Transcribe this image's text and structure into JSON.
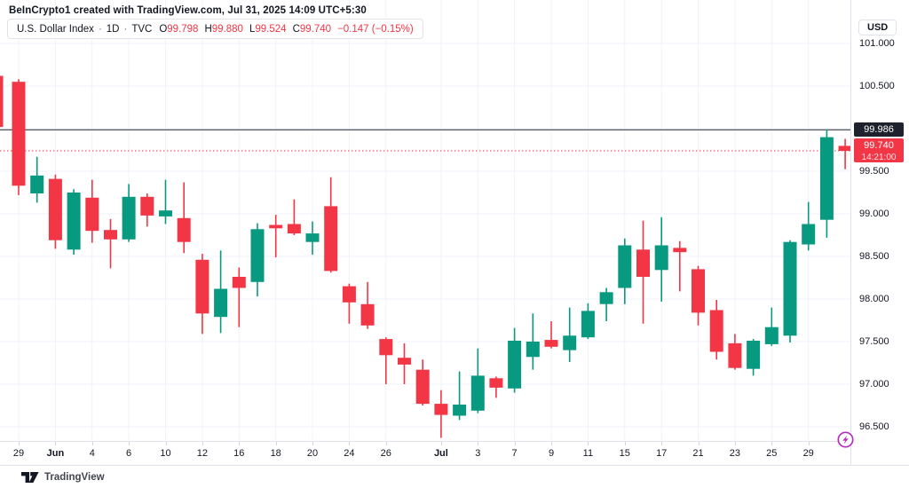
{
  "header": {
    "title": "BeInCrypto1 created with TradingView.com, Jul 31, 2025 14:09 UTC+5:30"
  },
  "legend": {
    "symbol": "U.S. Dollar Index",
    "sep": "·",
    "timeframe": "1D",
    "exchange": "TVC",
    "ohlc": [
      {
        "label": "O",
        "value": "99.798"
      },
      {
        "label": "H",
        "value": "99.880"
      },
      {
        "label": "L",
        "value": "99.524"
      },
      {
        "label": "C",
        "value": "99.740"
      }
    ],
    "change": "−0.147 (−0.15%)"
  },
  "price_labels": {
    "line_label": "99.986",
    "last_label": "99.740",
    "last_time": "14:21:00"
  },
  "axes": {
    "currency_button": "USD"
  },
  "footer": {
    "brand": "TradingView"
  },
  "colors": {
    "up": "#089981",
    "down": "#f23645",
    "grid": "#f0f3fa",
    "line": "#3a3e4a",
    "label_dark_bg": "#1e222d",
    "accent_purple": "#b32fc1",
    "text": "#131722"
  },
  "chart_data": {
    "type": "candlestick",
    "title": "U.S. Dollar Index · 1D · TVC",
    "ylabel": "USD",
    "grid": true,
    "ylim_visible": [
      96.33,
      101.51
    ],
    "y_ticks": [
      {
        "label": "101.000",
        "price": 101.0
      },
      {
        "label": "100.500",
        "price": 100.5
      },
      {
        "label": "99.500",
        "price": 99.5
      },
      {
        "label": "99.000",
        "price": 99.0
      },
      {
        "label": "98.500",
        "price": 98.5
      },
      {
        "label": "98.000",
        "price": 98.0
      },
      {
        "label": "97.500",
        "price": 97.5
      },
      {
        "label": "97.000",
        "price": 97.0
      },
      {
        "label": "96.500",
        "price": 96.5
      }
    ],
    "grid_prices": [
      101.0,
      100.5,
      100.0,
      99.5,
      99.0,
      98.5,
      98.0,
      97.5,
      97.0,
      96.5
    ],
    "x_ticks": [
      {
        "label": "29",
        "candle": 0,
        "bold": false
      },
      {
        "label": "Jun",
        "candle": 2,
        "bold": true
      },
      {
        "label": "4",
        "candle": 4,
        "bold": false
      },
      {
        "label": "6",
        "candle": 6,
        "bold": false
      },
      {
        "label": "10",
        "candle": 8,
        "bold": false
      },
      {
        "label": "12",
        "candle": 10,
        "bold": false
      },
      {
        "label": "16",
        "candle": 12,
        "bold": false
      },
      {
        "label": "18",
        "candle": 14,
        "bold": false
      },
      {
        "label": "20",
        "candle": 16,
        "bold": false
      },
      {
        "label": "24",
        "candle": 18,
        "bold": false
      },
      {
        "label": "26",
        "candle": 20,
        "bold": false
      },
      {
        "label": "Jul",
        "candle": 23,
        "bold": true
      },
      {
        "label": "3",
        "candle": 25,
        "bold": false
      },
      {
        "label": "7",
        "candle": 27,
        "bold": false
      },
      {
        "label": "9",
        "candle": 29,
        "bold": false
      },
      {
        "label": "11",
        "candle": 31,
        "bold": false
      },
      {
        "label": "15",
        "candle": 33,
        "bold": false
      },
      {
        "label": "17",
        "candle": 35,
        "bold": false
      },
      {
        "label": "21",
        "candle": 37,
        "bold": false
      },
      {
        "label": "23",
        "candle": 39,
        "bold": false
      },
      {
        "label": "25",
        "candle": 41,
        "bold": false
      },
      {
        "label": "29",
        "candle": 43,
        "bold": false
      }
    ],
    "annotations": {
      "horizontal_line_price": 99.986,
      "last_price_line": 99.74,
      "last_update_time": "14:21:00"
    },
    "colors": {
      "up": "#089981",
      "down": "#f23645"
    },
    "partial_candle_left_edge": {
      "top_price": 100.62,
      "bottom_price": 100.02,
      "direction": "down"
    },
    "candles": [
      {
        "d": "May 29",
        "o": 100.55,
        "h": 100.58,
        "l": 99.22,
        "c": 99.33
      },
      {
        "d": "May 30",
        "o": 99.24,
        "h": 99.67,
        "l": 99.13,
        "c": 99.45
      },
      {
        "d": "Jun 2",
        "o": 99.41,
        "h": 99.46,
        "l": 98.59,
        "c": 98.69
      },
      {
        "d": "Jun 3",
        "o": 98.58,
        "h": 99.29,
        "l": 98.52,
        "c": 99.25
      },
      {
        "d": "Jun 4",
        "o": 99.19,
        "h": 99.4,
        "l": 98.66,
        "c": 98.8
      },
      {
        "d": "Jun 5",
        "o": 98.81,
        "h": 98.94,
        "l": 98.36,
        "c": 98.7
      },
      {
        "d": "Jun 6",
        "o": 98.7,
        "h": 99.35,
        "l": 98.67,
        "c": 99.2
      },
      {
        "d": "Jun 9",
        "o": 99.2,
        "h": 99.24,
        "l": 98.85,
        "c": 98.98
      },
      {
        "d": "Jun 10",
        "o": 98.97,
        "h": 99.4,
        "l": 98.88,
        "c": 99.04
      },
      {
        "d": "Jun 11",
        "o": 98.95,
        "h": 99.37,
        "l": 98.54,
        "c": 98.67
      },
      {
        "d": "Jun 12",
        "o": 98.46,
        "h": 98.53,
        "l": 97.59,
        "c": 97.83
      },
      {
        "d": "Jun 13",
        "o": 97.79,
        "h": 98.57,
        "l": 97.6,
        "c": 98.12
      },
      {
        "d": "Jun 16",
        "o": 98.26,
        "h": 98.37,
        "l": 97.67,
        "c": 98.13
      },
      {
        "d": "Jun 17",
        "o": 98.2,
        "h": 98.89,
        "l": 98.03,
        "c": 98.82
      },
      {
        "d": "Jun 18",
        "o": 98.87,
        "h": 98.99,
        "l": 98.49,
        "c": 98.83
      },
      {
        "d": "Jun 19",
        "o": 98.88,
        "h": 99.17,
        "l": 98.75,
        "c": 98.77
      },
      {
        "d": "Jun 20",
        "o": 98.67,
        "h": 98.91,
        "l": 98.52,
        "c": 98.77
      },
      {
        "d": "Jun 23",
        "o": 99.09,
        "h": 99.43,
        "l": 98.31,
        "c": 98.33
      },
      {
        "d": "Jun 24",
        "o": 98.15,
        "h": 98.18,
        "l": 97.71,
        "c": 97.96
      },
      {
        "d": "Jun 25",
        "o": 97.94,
        "h": 98.2,
        "l": 97.65,
        "c": 97.69
      },
      {
        "d": "Jun 26",
        "o": 97.53,
        "h": 97.55,
        "l": 97.0,
        "c": 97.34
      },
      {
        "d": "Jun 27",
        "o": 97.31,
        "h": 97.48,
        "l": 97.0,
        "c": 97.23
      },
      {
        "d": "Jun 30",
        "o": 97.17,
        "h": 97.29,
        "l": 96.75,
        "c": 96.77
      },
      {
        "d": "Jul 1",
        "o": 96.77,
        "h": 96.93,
        "l": 96.37,
        "c": 96.64
      },
      {
        "d": "Jul 2",
        "o": 96.63,
        "h": 97.15,
        "l": 96.58,
        "c": 96.76
      },
      {
        "d": "Jul 3",
        "o": 96.69,
        "h": 97.42,
        "l": 96.66,
        "c": 97.1
      },
      {
        "d": "Jul 4",
        "o": 97.07,
        "h": 97.09,
        "l": 96.84,
        "c": 96.96
      },
      {
        "d": "Jul 7",
        "o": 96.95,
        "h": 97.66,
        "l": 96.9,
        "c": 97.51
      },
      {
        "d": "Jul 8",
        "o": 97.32,
        "h": 97.83,
        "l": 97.17,
        "c": 97.5
      },
      {
        "d": "Jul 9",
        "o": 97.52,
        "h": 97.74,
        "l": 97.42,
        "c": 97.44
      },
      {
        "d": "Jul 10",
        "o": 97.4,
        "h": 97.9,
        "l": 97.26,
        "c": 97.57
      },
      {
        "d": "Jul 11",
        "o": 97.55,
        "h": 97.95,
        "l": 97.53,
        "c": 97.86
      },
      {
        "d": "Jul 14",
        "o": 97.94,
        "h": 98.13,
        "l": 97.74,
        "c": 98.08
      },
      {
        "d": "Jul 15",
        "o": 98.13,
        "h": 98.71,
        "l": 97.94,
        "c": 98.63
      },
      {
        "d": "Jul 16",
        "o": 98.58,
        "h": 98.92,
        "l": 97.71,
        "c": 98.26
      },
      {
        "d": "Jul 17",
        "o": 98.34,
        "h": 98.96,
        "l": 97.97,
        "c": 98.63
      },
      {
        "d": "Jul 18",
        "o": 98.6,
        "h": 98.68,
        "l": 98.09,
        "c": 98.55
      },
      {
        "d": "Jul 21",
        "o": 98.35,
        "h": 98.39,
        "l": 97.69,
        "c": 97.84
      },
      {
        "d": "Jul 22",
        "o": 97.87,
        "h": 97.99,
        "l": 97.29,
        "c": 97.38
      },
      {
        "d": "Jul 23",
        "o": 97.48,
        "h": 97.59,
        "l": 97.17,
        "c": 97.19
      },
      {
        "d": "Jul 24",
        "o": 97.18,
        "h": 97.53,
        "l": 97.1,
        "c": 97.51
      },
      {
        "d": "Jul 25",
        "o": 97.47,
        "h": 97.9,
        "l": 97.45,
        "c": 97.67
      },
      {
        "d": "Jul 28",
        "o": 97.57,
        "h": 98.69,
        "l": 97.49,
        "c": 98.67
      },
      {
        "d": "Jul 29",
        "o": 98.64,
        "h": 99.14,
        "l": 98.57,
        "c": 98.88
      },
      {
        "d": "Jul 30",
        "o": 98.93,
        "h": 99.99,
        "l": 98.72,
        "c": 99.9
      },
      {
        "d": "Jul 31",
        "o": 99.798,
        "h": 99.88,
        "l": 99.524,
        "c": 99.74
      }
    ]
  }
}
